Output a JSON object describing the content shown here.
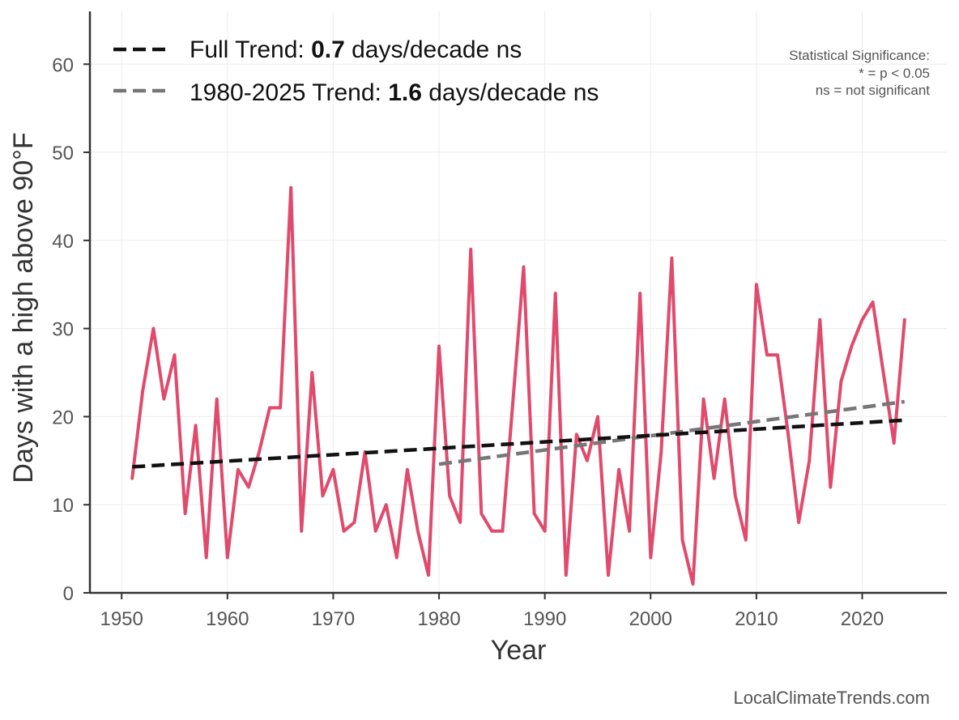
{
  "chart_data": {
    "type": "line",
    "xlabel": "Year",
    "ylabel": "Days with a high above 90°F",
    "xlim": [
      1947,
      2028
    ],
    "ylim": [
      0,
      66
    ],
    "xticks": [
      1950,
      1960,
      1970,
      1980,
      1990,
      2000,
      2010,
      2020
    ],
    "yticks": [
      0,
      10,
      20,
      30,
      40,
      50,
      60
    ],
    "grid": true,
    "legend_position": "top-left",
    "series": [
      {
        "color": "#e04a6c",
        "x": [
          1951,
          1952,
          1953,
          1954,
          1955,
          1956,
          1957,
          1958,
          1959,
          1960,
          1961,
          1962,
          1963,
          1964,
          1965,
          1966,
          1967,
          1968,
          1969,
          1970,
          1971,
          1972,
          1973,
          1974,
          1975,
          1976,
          1977,
          1978,
          1979,
          1980,
          1981,
          1982,
          1983,
          1984,
          1985,
          1986,
          1987,
          1988,
          1989,
          1990,
          1991,
          1992,
          1993,
          1994,
          1995,
          1996,
          1997,
          1998,
          1999,
          2000,
          2001,
          2002,
          2003,
          2004,
          2005,
          2006,
          2007,
          2008,
          2009,
          2010,
          2011,
          2012,
          2013,
          2014,
          2015,
          2016,
          2017,
          2018,
          2019,
          2020,
          2021,
          2022,
          2023,
          2024
        ],
        "y": [
          13,
          23,
          30,
          22,
          27,
          9,
          19,
          4,
          22,
          4,
          14,
          12,
          16,
          21,
          21,
          46,
          7,
          25,
          11,
          14,
          7,
          8,
          16,
          7,
          10,
          4,
          14,
          7,
          2,
          28,
          11,
          8,
          39,
          9,
          7,
          7,
          22,
          37,
          9,
          7,
          34,
          2,
          18,
          15,
          20,
          2,
          14,
          7,
          34,
          4,
          16,
          38,
          6,
          1,
          22,
          13,
          22,
          11,
          6,
          35,
          27,
          27,
          18,
          8,
          15,
          31,
          12,
          24,
          28,
          31,
          33,
          25,
          17,
          31
        ]
      }
    ],
    "trends": [
      {
        "label_prefix": "Full Trend: ",
        "value_text": "0.7",
        "label_suffix": " days/decade ns",
        "color": "#111111",
        "x": [
          1951,
          2024
        ],
        "y": [
          14.3,
          19.6
        ]
      },
      {
        "label_prefix": "1980-2025 Trend: ",
        "value_text": "1.6",
        "label_suffix": " days/decade ns",
        "color": "#777777",
        "x": [
          1980,
          2024
        ],
        "y": [
          14.6,
          21.7
        ]
      }
    ],
    "significance_note": [
      "Statistical Significance:",
      "* = p < 0.05",
      "ns = not significant"
    ],
    "credit": "LocalClimateTrends.com"
  }
}
